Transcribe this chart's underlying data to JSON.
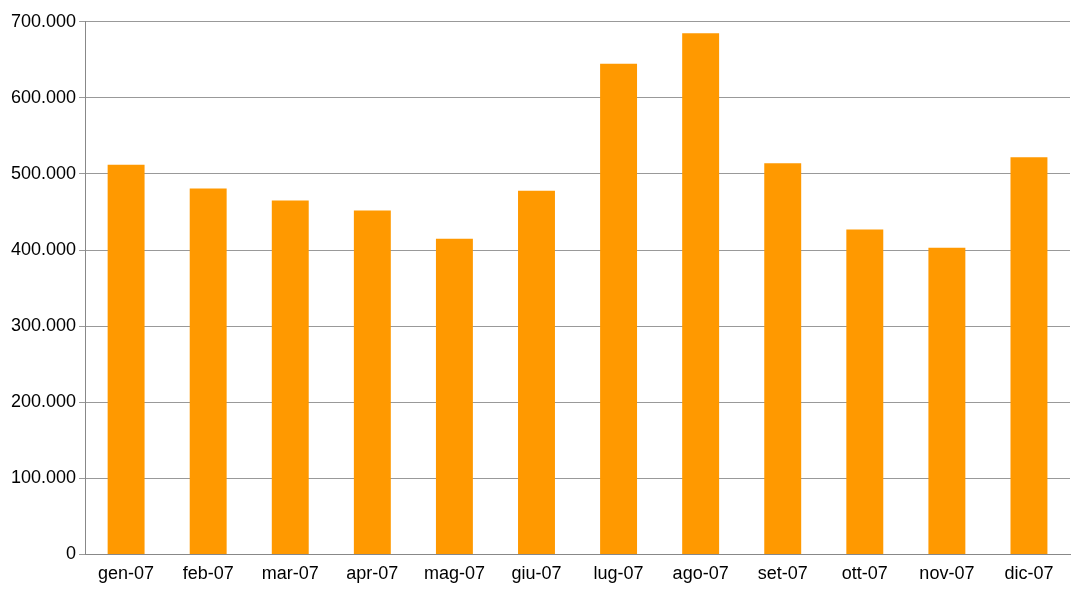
{
  "chart_data": {
    "type": "bar",
    "categories": [
      "gen-07",
      "feb-07",
      "mar-07",
      "apr-07",
      "mag-07",
      "giu-07",
      "lug-07",
      "ago-07",
      "set-07",
      "ott-07",
      "nov-07",
      "dic-07"
    ],
    "values": [
      512000,
      481000,
      465000,
      452000,
      415000,
      478000,
      645000,
      685000,
      514000,
      427000,
      403000,
      522000
    ],
    "color": "#ff9900",
    "ylim": [
      0,
      700000
    ],
    "yticks": [
      0,
      {
        "value": 100000,
        "label": "100.000"
      },
      {
        "value": 200000,
        "label": "200.000"
      },
      {
        "value": 300000,
        "label": "300.000"
      },
      {
        "value": 400000,
        "label": "400.000"
      },
      {
        "value": 500000,
        "label": "500.000"
      },
      {
        "value": 600000,
        "label": "600.000"
      },
      {
        "value": 700000,
        "label": "700.000"
      }
    ],
    "grid": "y"
  }
}
